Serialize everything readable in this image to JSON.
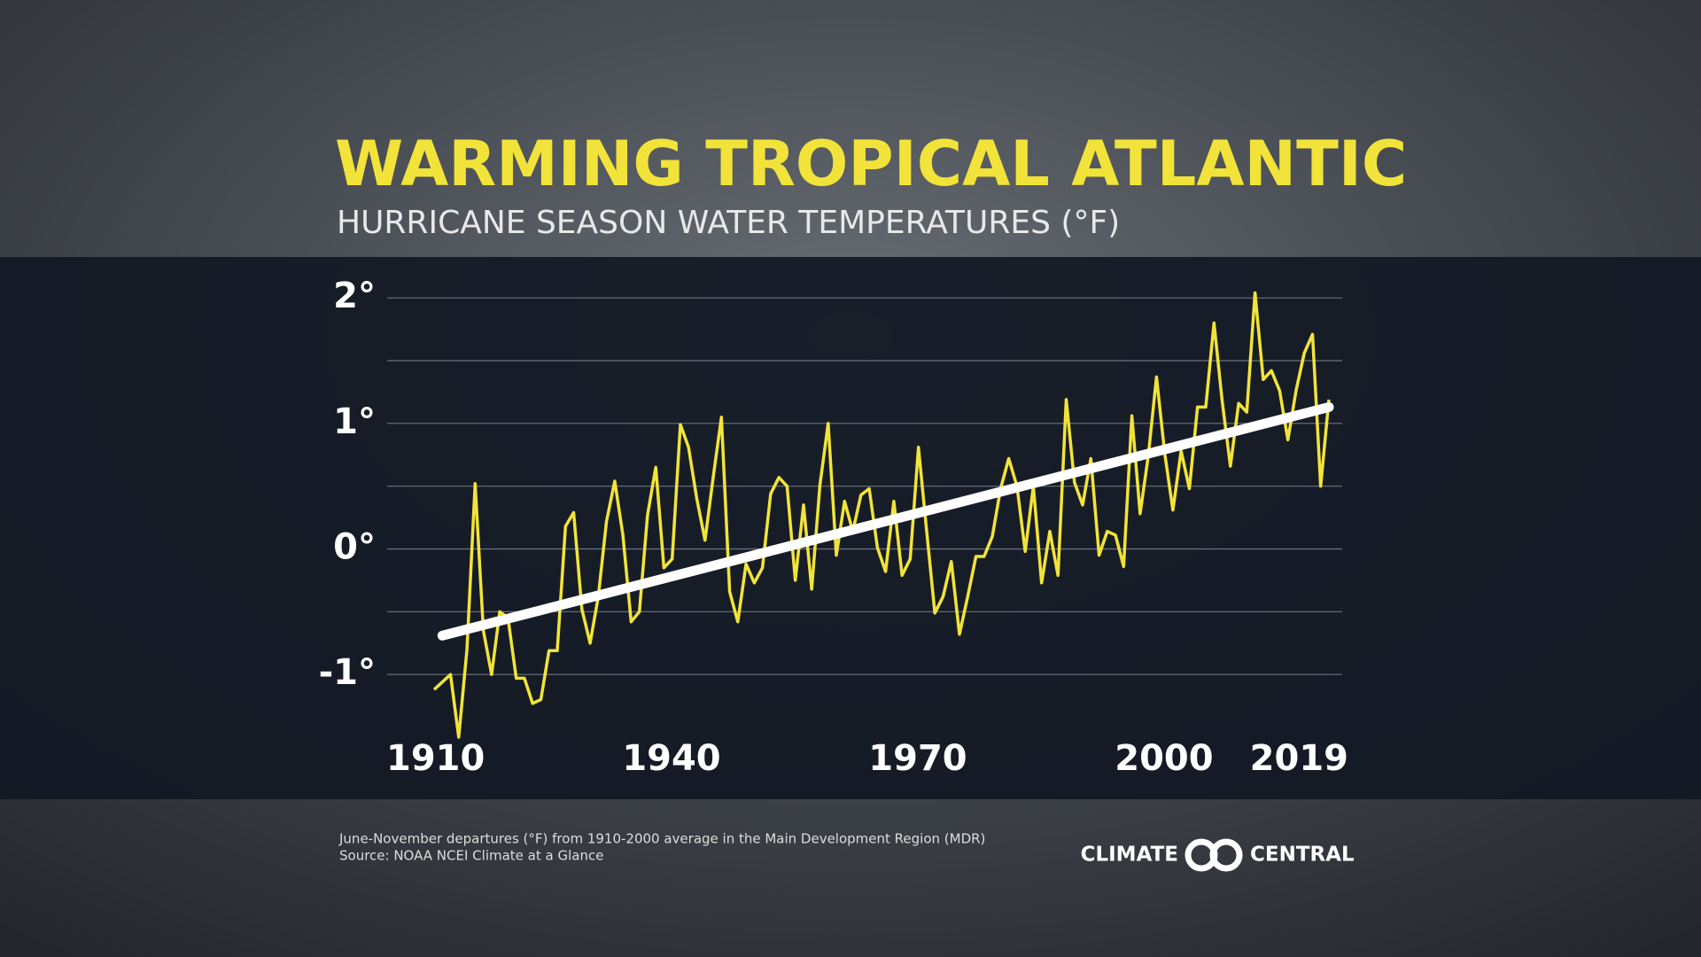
{
  "chart_data": {
    "type": "line",
    "title": "WARMING TROPICAL ATLANTIC",
    "subtitle": "HURRICANE SEASON WATER TEMPERATURES (°F)",
    "x": [
      1910,
      1911,
      1912,
      1913,
      1914,
      1915,
      1916,
      1917,
      1918,
      1919,
      1920,
      1921,
      1922,
      1923,
      1924,
      1925,
      1926,
      1927,
      1928,
      1929,
      1930,
      1931,
      1932,
      1933,
      1934,
      1935,
      1936,
      1937,
      1938,
      1939,
      1940,
      1941,
      1942,
      1943,
      1944,
      1945,
      1946,
      1947,
      1948,
      1949,
      1950,
      1951,
      1952,
      1953,
      1954,
      1955,
      1956,
      1957,
      1958,
      1959,
      1960,
      1961,
      1962,
      1963,
      1964,
      1965,
      1966,
      1967,
      1968,
      1969,
      1970,
      1971,
      1972,
      1973,
      1974,
      1975,
      1976,
      1977,
      1978,
      1979,
      1980,
      1981,
      1982,
      1983,
      1984,
      1985,
      1986,
      1987,
      1988,
      1989,
      1990,
      1991,
      1992,
      1993,
      1994,
      1995,
      1996,
      1997,
      1998,
      1999,
      2000,
      2001,
      2002,
      2003,
      2004,
      2005,
      2006,
      2007,
      2008,
      2009,
      2010,
      2011,
      2012,
      2013,
      2014,
      2015,
      2016,
      2017,
      2018,
      2019
    ],
    "series": [
      {
        "color": "#f2e33a",
        "values": [
          -1.12,
          -1.06,
          -1.0,
          -1.5,
          -0.8,
          0.52,
          -0.65,
          -1.0,
          -0.5,
          -0.55,
          -1.03,
          -1.03,
          -1.23,
          -1.2,
          -0.81,
          -0.81,
          0.18,
          0.29,
          -0.48,
          -0.75,
          -0.38,
          0.22,
          0.54,
          0.11,
          -0.58,
          -0.5,
          0.27,
          0.65,
          -0.15,
          -0.08,
          0.99,
          0.81,
          0.4,
          0.07,
          0.57,
          1.05,
          -0.34,
          -0.58,
          -0.12,
          -0.27,
          -0.15,
          0.44,
          0.57,
          0.5,
          -0.25,
          0.35,
          -0.32,
          0.51,
          1.0,
          -0.05,
          0.38,
          0.14,
          0.43,
          0.48,
          0.01,
          -0.18,
          0.38,
          -0.21,
          -0.08,
          0.81,
          0.14,
          -0.51,
          -0.38,
          -0.1,
          -0.68,
          -0.38,
          -0.06,
          -0.06,
          0.1,
          0.48,
          0.72,
          0.5,
          -0.02,
          0.5,
          -0.27,
          0.14,
          -0.21,
          1.19,
          0.53,
          0.35,
          0.72,
          -0.05,
          0.14,
          0.11,
          -0.14,
          1.06,
          0.28,
          0.74,
          1.37,
          0.76,
          0.31,
          0.78,
          0.48,
          1.13,
          1.13,
          1.8,
          1.18,
          0.66,
          1.16,
          1.09,
          2.04,
          1.35,
          1.42,
          1.26,
          0.87,
          1.26,
          1.56,
          1.71,
          0.5,
          1.19
        ]
      }
    ],
    "trend": {
      "color": "#ffffff",
      "x": [
        1911,
        2019
      ],
      "values": [
        -0.69,
        1.13
      ]
    },
    "xlim": [
      1910,
      2019
    ],
    "xticks": [
      1910,
      1940,
      1970,
      2000,
      2019
    ],
    "ylim": [
      -1.5,
      2.1
    ],
    "yticks": [
      {
        "value": -1,
        "label": "-1°"
      },
      {
        "value": 0,
        "label": "0°"
      },
      {
        "value": 1,
        "label": "1°"
      },
      {
        "value": 2,
        "label": "2°"
      }
    ],
    "ygrid": [
      -1,
      -0.5,
      0,
      0.5,
      1,
      1.5,
      2
    ],
    "footnote": [
      "June-November departures (°F) from 1910-2000 average in the Main Development Region (MDR)",
      "Source: NOAA NCEI Climate at a Glance"
    ],
    "logo": [
      "CLIMATE",
      "CENTRAL"
    ]
  }
}
